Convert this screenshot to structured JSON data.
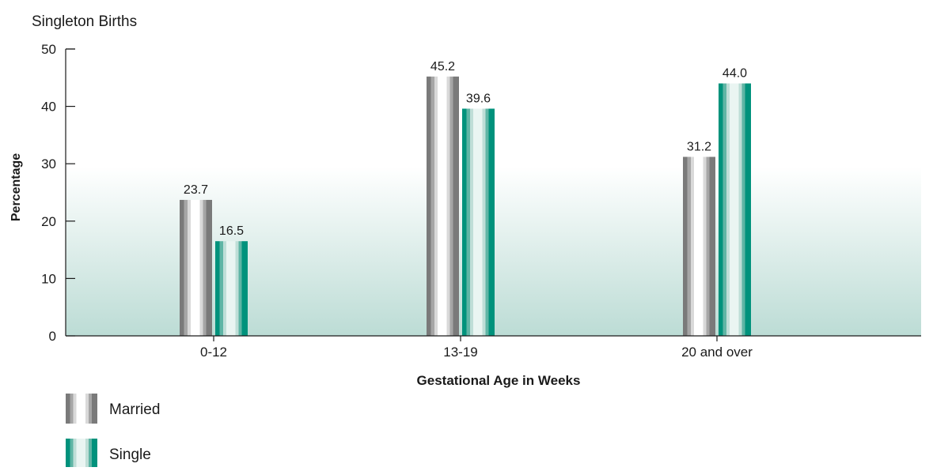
{
  "chart_data": {
    "type": "bar",
    "title": "Singleton Births",
    "xlabel": "Gestational Age in Weeks",
    "ylabel": "Percentage",
    "categories": [
      "0-12",
      "13-19",
      "20 and over"
    ],
    "series": [
      {
        "name": "Married",
        "values": [
          23.7,
          45.2,
          31.2
        ],
        "value_labels": [
          "23.7",
          "45.2",
          "31.2"
        ]
      },
      {
        "name": "Single",
        "values": [
          16.5,
          39.6,
          44.0
        ],
        "value_labels": [
          "16.5",
          "39.6",
          "44.0"
        ]
      }
    ],
    "ylim": [
      0,
      50
    ],
    "yticks": [
      "0",
      "10",
      "20",
      "30",
      "40",
      "50"
    ],
    "grid": false,
    "legend_position": "bottom-left",
    "colors": {
      "Married": {
        "dark": "#7a7a7a",
        "mid": "#a6a6a6",
        "light": "#d9d9d9",
        "white": "#ffffff"
      },
      "Single": {
        "dark": "#00927c",
        "mid": "#5fb5a5",
        "light": "#bfded7",
        "white": "#eaf5f2"
      },
      "background_band_top": "#ffffff",
      "background_band_bottom": "#bcdcd5",
      "axis": "#1a1a1a"
    }
  }
}
